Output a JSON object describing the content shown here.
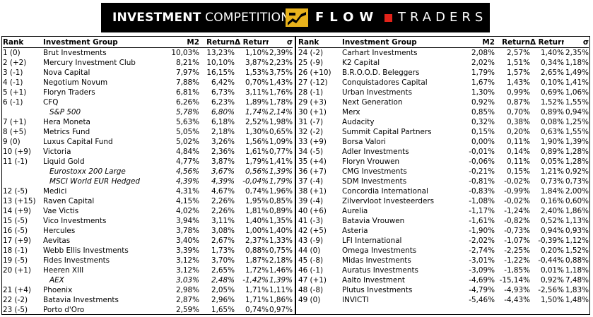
{
  "banner": {
    "title_bold": "INVESTMENT",
    "title_rest": " COMPETITION",
    "logo_text": "FLOW",
    "logo_text2": "TRADERS"
  },
  "columns": {
    "rank": "Rank",
    "group": "Investment Group",
    "m2": "M2",
    "return": "Return",
    "delta_return": "Δ Return",
    "sigma": "σ"
  },
  "left_rows": [
    {
      "rank": "1 (0)",
      "group": "Brut Investments",
      "m2": "10,03%",
      "ret": "13,23%",
      "dret": "1,10%",
      "sigma": "2,39%"
    },
    {
      "rank": "2 (+2)",
      "group": "Mercury Investment Club",
      "m2": "8,21%",
      "ret": "10,10%",
      "dret": "3,87%",
      "sigma": "2,23%"
    },
    {
      "rank": "3 (-1)",
      "group": "Nova Capital",
      "m2": "7,97%",
      "ret": "16,15%",
      "dret": "1,53%",
      "sigma": "3,75%"
    },
    {
      "rank": "4 (-1)",
      "group": "Negotium Novum",
      "m2": "7,88%",
      "ret": "6,42%",
      "dret": "0,70%",
      "sigma": "1,43%"
    },
    {
      "rank": "5 (+1)",
      "group": "Floryn Traders",
      "m2": "6,81%",
      "ret": "6,73%",
      "dret": "3,11%",
      "sigma": "1,76%"
    },
    {
      "rank": "6 (-1)",
      "group": "CFQ",
      "m2": "6,26%",
      "ret": "6,23%",
      "dret": "1,89%",
      "sigma": "1,78%"
    },
    {
      "rank": "",
      "group": "S&P 500",
      "m2": "5,78%",
      "ret": "6,80%",
      "dret": "1,74%",
      "sigma": "2,14%",
      "bench": true
    },
    {
      "rank": "7 (+1)",
      "group": "Hera Moneta",
      "m2": "5,63%",
      "ret": "6,18%",
      "dret": "2,52%",
      "sigma": "1,98%"
    },
    {
      "rank": "8 (+5)",
      "group": "Metrics Fund",
      "m2": "5,05%",
      "ret": "2,18%",
      "dret": "1,30%",
      "sigma": "0,65%"
    },
    {
      "rank": "9 (0)",
      "group": "Luxus Capital Fund",
      "m2": "5,02%",
      "ret": "3,26%",
      "dret": "1,56%",
      "sigma": "1,09%"
    },
    {
      "rank": "10 (+9)",
      "group": "Victoria",
      "m2": "4,84%",
      "ret": "2,36%",
      "dret": "1,61%",
      "sigma": "0,77%"
    },
    {
      "rank": "11 (-1)",
      "group": "Liquid Gold",
      "m2": "4,77%",
      "ret": "3,87%",
      "dret": "1,79%",
      "sigma": "1,41%"
    },
    {
      "rank": "",
      "group": "Eurostoxx 200 Large",
      "m2": "4,56%",
      "ret": "3,67%",
      "dret": "0,56%",
      "sigma": "1,39%",
      "bench": true
    },
    {
      "rank": "",
      "group": "MSCI World EUR Hedged",
      "m2": "4,39%",
      "ret": "4,39%",
      "dret": "-0,04%",
      "sigma": "1,79%",
      "bench": true
    },
    {
      "rank": "12 (-5)",
      "group": "Medici",
      "m2": "4,31%",
      "ret": "4,67%",
      "dret": "0,74%",
      "sigma": "1,96%"
    },
    {
      "rank": "13 (+15)",
      "group": "Raven Capital",
      "m2": "4,15%",
      "ret": "2,26%",
      "dret": "1,95%",
      "sigma": "0,85%"
    },
    {
      "rank": "14 (+9)",
      "group": "Vae Victis",
      "m2": "4,02%",
      "ret": "2,26%",
      "dret": "1,81%",
      "sigma": "0,89%"
    },
    {
      "rank": "15 (-5)",
      "group": "Vico Investments",
      "m2": "3,94%",
      "ret": "3,11%",
      "dret": "1,40%",
      "sigma": "1,35%"
    },
    {
      "rank": "16 (-5)",
      "group": "Hercules",
      "m2": "3,78%",
      "ret": "3,08%",
      "dret": "1,00%",
      "sigma": "1,40%"
    },
    {
      "rank": "17 (+9)",
      "group": "Aevitas",
      "m2": "3,40%",
      "ret": "2,67%",
      "dret": "2,37%",
      "sigma": "1,33%"
    },
    {
      "rank": "18 (-1)",
      "group": "Webb Ellis Investments",
      "m2": "3,39%",
      "ret": "1,73%",
      "dret": "0,88%",
      "sigma": "0,75%"
    },
    {
      "rank": "19 (-5)",
      "group": "Fides Investments",
      "m2": "3,12%",
      "ret": "3,70%",
      "dret": "1,87%",
      "sigma": "2,18%"
    },
    {
      "rank": "20 (+1)",
      "group": "Heeren XIII",
      "m2": "3,12%",
      "ret": "2,65%",
      "dret": "1,72%",
      "sigma": "1,46%"
    },
    {
      "rank": "",
      "group": "AEX",
      "m2": "3,03%",
      "ret": "2,48%",
      "dret": "-1,42%",
      "sigma": "1,39%",
      "bench": true
    },
    {
      "rank": "21 (+4)",
      "group": "Phoenix",
      "m2": "2,98%",
      "ret": "2,05%",
      "dret": "1,71%",
      "sigma": "1,11%"
    },
    {
      "rank": "22 (-2)",
      "group": "Batavia Investments",
      "m2": "2,87%",
      "ret": "2,96%",
      "dret": "1,71%",
      "sigma": "1,86%"
    },
    {
      "rank": "23 (-5)",
      "group": "Porto d'Oro",
      "m2": "2,59%",
      "ret": "1,65%",
      "dret": "0,74%",
      "sigma": "0,97%"
    }
  ],
  "right_rows": [
    {
      "rank": "24 (-2)",
      "group": "Carhart Investments",
      "m2": "2,08%",
      "ret": "2,57%",
      "dret": "1,40%",
      "sigma": "2,35%"
    },
    {
      "rank": "25 (-9)",
      "group": "K2 Capital",
      "m2": "2,02%",
      "ret": "1,51%",
      "dret": "0,34%",
      "sigma": "1,18%"
    },
    {
      "rank": "26 (+10)",
      "group": "B.R.O.O.D. Beleggers",
      "m2": "1,79%",
      "ret": "1,57%",
      "dret": "2,65%",
      "sigma": "1,49%"
    },
    {
      "rank": "27 (-12)",
      "group": "Conquistadores Capital",
      "m2": "1,67%",
      "ret": "1,43%",
      "dret": "0,10%",
      "sigma": "1,41%"
    },
    {
      "rank": "28 (-1)",
      "group": "Urban Investments",
      "m2": "1,30%",
      "ret": "0,99%",
      "dret": "0,69%",
      "sigma": "1,06%"
    },
    {
      "rank": "29 (+3)",
      "group": "Next Generation",
      "m2": "0,92%",
      "ret": "0,87%",
      "dret": "1,52%",
      "sigma": "1,55%"
    },
    {
      "rank": "30 (+1)",
      "group": "Merx",
      "m2": "0,85%",
      "ret": "0,70%",
      "dret": "0,89%",
      "sigma": "0,94%"
    },
    {
      "rank": "31 (-7)",
      "group": "Audacity",
      "m2": "0,32%",
      "ret": "0,38%",
      "dret": "0,08%",
      "sigma": "1,25%"
    },
    {
      "rank": "32 (-2)",
      "group": "Summit Capital Partners",
      "m2": "0,15%",
      "ret": "0,20%",
      "dret": "0,63%",
      "sigma": "1,55%"
    },
    {
      "rank": "33 (+9)",
      "group": "Borsa Valori",
      "m2": "0,00%",
      "ret": "0,11%",
      "dret": "1,90%",
      "sigma": "1,39%"
    },
    {
      "rank": "34 (-5)",
      "group": "Adler Investments",
      "m2": "-0,01%",
      "ret": "0,14%",
      "dret": "0,89%",
      "sigma": "1,28%"
    },
    {
      "rank": "35 (+4)",
      "group": "Floryn Vrouwen",
      "m2": "-0,06%",
      "ret": "0,11%",
      "dret": "0,05%",
      "sigma": "1,28%"
    },
    {
      "rank": "36 (+7)",
      "group": "CMG Investments",
      "m2": "-0,21%",
      "ret": "0,15%",
      "dret": "1,21%",
      "sigma": "0,92%"
    },
    {
      "rank": "37 (-4)",
      "group": "SDM Investments",
      "m2": "-0,81%",
      "ret": "-0,02%",
      "dret": "0,73%",
      "sigma": "0,73%"
    },
    {
      "rank": "38 (+1)",
      "group": "Concordia International",
      "m2": "-0,83%",
      "ret": "-0,99%",
      "dret": "1,84%",
      "sigma": "2,00%"
    },
    {
      "rank": "39 (-4)",
      "group": "Zilvervloot Investeerders",
      "m2": "-1,08%",
      "ret": "-0,02%",
      "dret": "0,16%",
      "sigma": "0,60%"
    },
    {
      "rank": "40 (+6)",
      "group": "Aurelia",
      "m2": "-1,17%",
      "ret": "-1,24%",
      "dret": "2,40%",
      "sigma": "1,86%"
    },
    {
      "rank": "41 (-3)",
      "group": "Batavia Vrouwen",
      "m2": "-1,61%",
      "ret": "-0,82%",
      "dret": "0,52%",
      "sigma": "1,13%"
    },
    {
      "rank": "42 (+5)",
      "group": "Asteria",
      "m2": "-1,90%",
      "ret": "-0,73%",
      "dret": "0,94%",
      "sigma": "0,93%"
    },
    {
      "rank": "43 (-9)",
      "group": "LFI International",
      "m2": "-2,02%",
      "ret": "-1,07%",
      "dret": "-0,39%",
      "sigma": "1,12%"
    },
    {
      "rank": "44 (0)",
      "group": "Omega Investments",
      "m2": "-2,74%",
      "ret": "-2,25%",
      "dret": "0,20%",
      "sigma": "1,52%"
    },
    {
      "rank": "45 (-8)",
      "group": "Midas Investments",
      "m2": "-3,01%",
      "ret": "-1,22%",
      "dret": "-0,44%",
      "sigma": "0,88%"
    },
    {
      "rank": "46 (-1)",
      "group": "Auratus Investments",
      "m2": "-3,09%",
      "ret": "-1,85%",
      "dret": "0,01%",
      "sigma": "1,18%"
    },
    {
      "rank": "47 (+1)",
      "group": "Aalto Investment",
      "m2": "-4,69%",
      "ret": "-15,14%",
      "dret": "0,92%",
      "sigma": "7,48%"
    },
    {
      "rank": "48 (-8)",
      "group": "Plutus Investments",
      "m2": "-4,79%",
      "ret": "-4,93%",
      "dret": "-2,56%",
      "sigma": "1,83%"
    },
    {
      "rank": "49 (0)",
      "group": "INVICTI",
      "m2": "-5,46%",
      "ret": "-4,43%",
      "dret": "1,50%",
      "sigma": "1,48%"
    }
  ]
}
